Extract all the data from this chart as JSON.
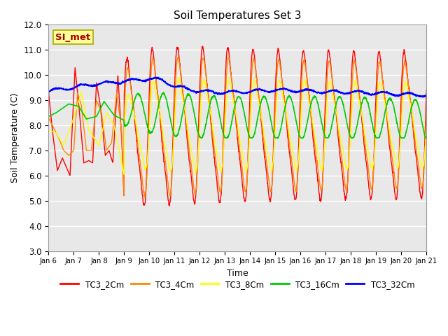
{
  "title": "Soil Temperatures Set 3",
  "xlabel": "Time",
  "ylabel": "Soil Temperature (C)",
  "ylim": [
    3.0,
    12.0
  ],
  "yticks": [
    3.0,
    4.0,
    5.0,
    6.0,
    7.0,
    8.0,
    9.0,
    10.0,
    11.0,
    12.0
  ],
  "xtick_labels": [
    "Jan 6",
    "Jan 7",
    "Jan 8",
    "Jan 9",
    "Jan 10",
    "Jan 11",
    "Jan 12",
    "Jan 13",
    "Jan 14",
    "Jan 15",
    "Jan 16",
    "Jan 17",
    "Jan 18",
    "Jan 19",
    "Jan 20",
    "Jan 21"
  ],
  "series_colors": {
    "TC3_2Cm": "#ff0000",
    "TC3_4Cm": "#ff8800",
    "TC3_8Cm": "#ffff00",
    "TC3_16Cm": "#00cc00",
    "TC3_32Cm": "#0000ff"
  },
  "annotation_text": "SI_met",
  "annotation_box_facecolor": "#ffff99",
  "annotation_box_edgecolor": "#aaaa00",
  "annotation_text_color": "#aa0000",
  "plot_bg_color": "#e8e8e8",
  "grid_color": "#ffffff",
  "days": 15,
  "num_points": 1500
}
